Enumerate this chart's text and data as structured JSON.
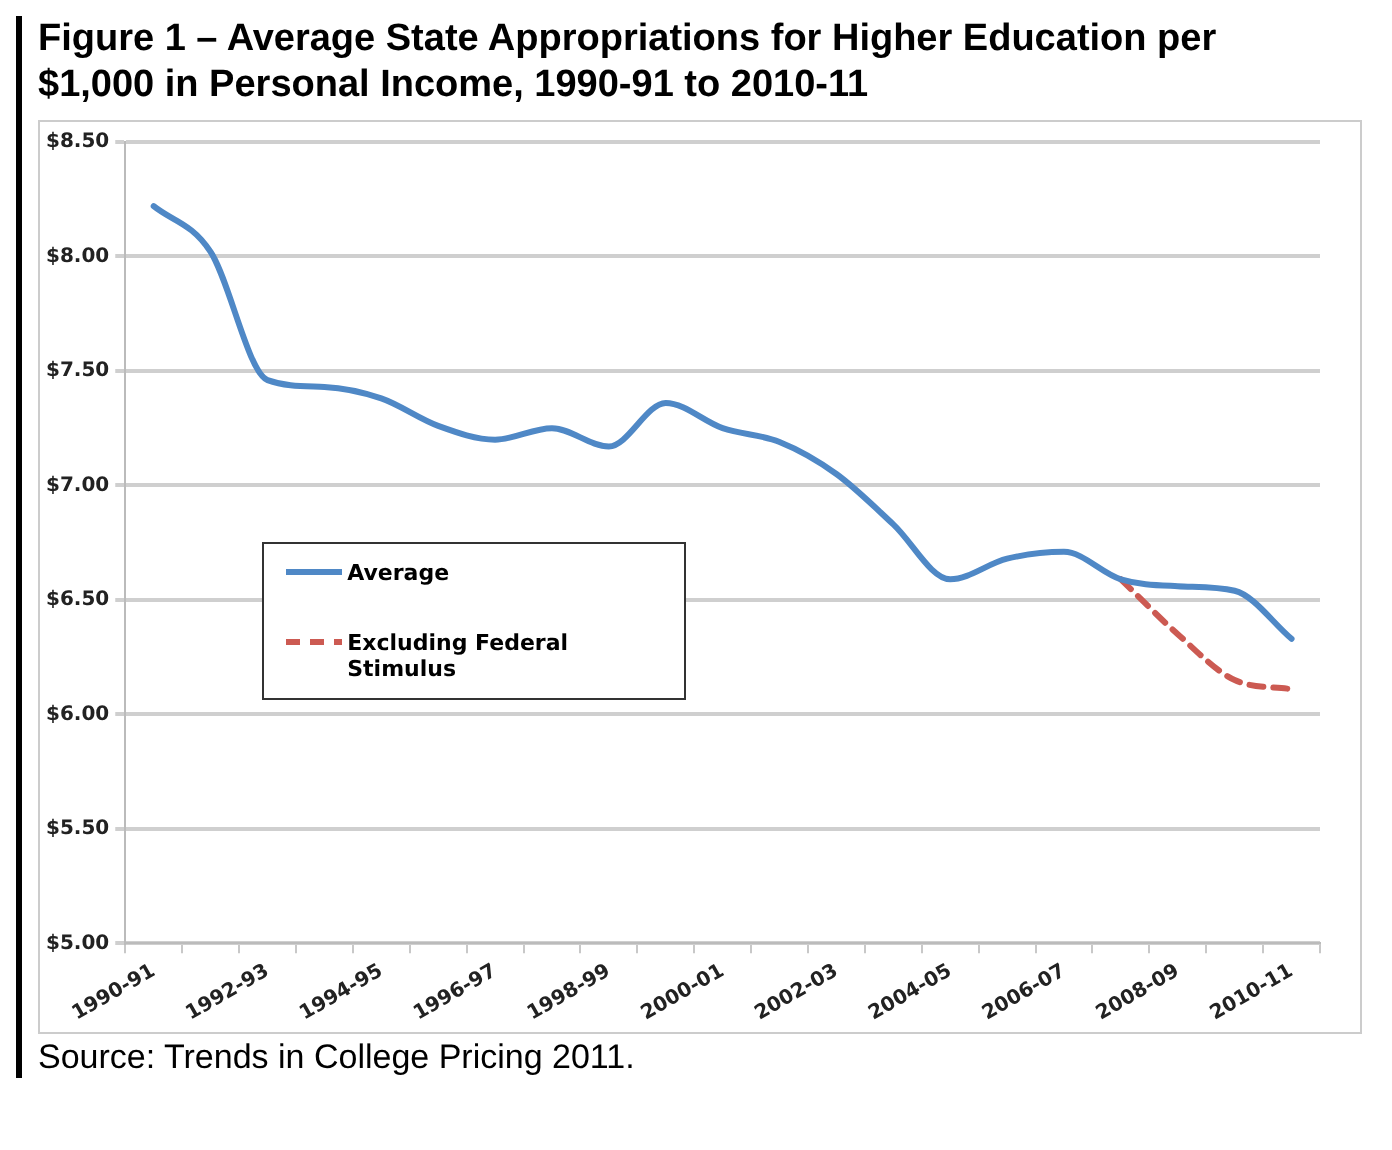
{
  "chart_data": {
    "type": "line",
    "title": "Figure 1 – Average State Appropriations for Higher Education per $1,000 in Personal Income, 1990-91 to 2010-11",
    "categories": [
      "1990-91",
      null,
      "1992-93",
      null,
      "1994-95",
      null,
      "1996-97",
      null,
      "1998-99",
      null,
      "2000-01",
      null,
      "2002-03",
      null,
      "2004-05",
      null,
      "2006-07",
      null,
      "2008-09",
      null,
      "2010-11"
    ],
    "series": [
      {
        "name": "Average",
        "color": "#4f88c6",
        "line_style": "solid",
        "values": [
          8.22,
          8.02,
          7.46,
          7.43,
          7.38,
          7.26,
          7.2,
          7.25,
          7.17,
          7.36,
          7.25,
          7.19,
          7.05,
          6.83,
          6.59,
          6.68,
          6.71,
          6.59,
          6.56,
          6.54,
          6.33
        ]
      },
      {
        "name": "Excluding Federal Stimulus",
        "color": "#cc5a52",
        "line_style": "dashed",
        "values": [
          null,
          null,
          null,
          null,
          null,
          null,
          null,
          null,
          null,
          null,
          null,
          null,
          null,
          null,
          null,
          null,
          null,
          6.59,
          6.35,
          6.15,
          6.11
        ]
      }
    ],
    "ylim": [
      5,
      8.5
    ],
    "yticks": [
      {
        "value": 5,
        "label": "$5.00"
      },
      {
        "value": 5.5,
        "label": "$5.50"
      },
      {
        "value": 6,
        "label": "$6.00"
      },
      {
        "value": 6.5,
        "label": "$6.50"
      },
      {
        "value": 7,
        "label": "$7.00"
      },
      {
        "value": 7.5,
        "label": "$7.50"
      },
      {
        "value": 8,
        "label": "$8.00"
      },
      {
        "value": 8.5,
        "label": "$8.50"
      }
    ],
    "grid": "y",
    "legend": "left",
    "marker": "none",
    "annotations": [
      "Source: Trends in College Pricing 2011."
    ]
  }
}
